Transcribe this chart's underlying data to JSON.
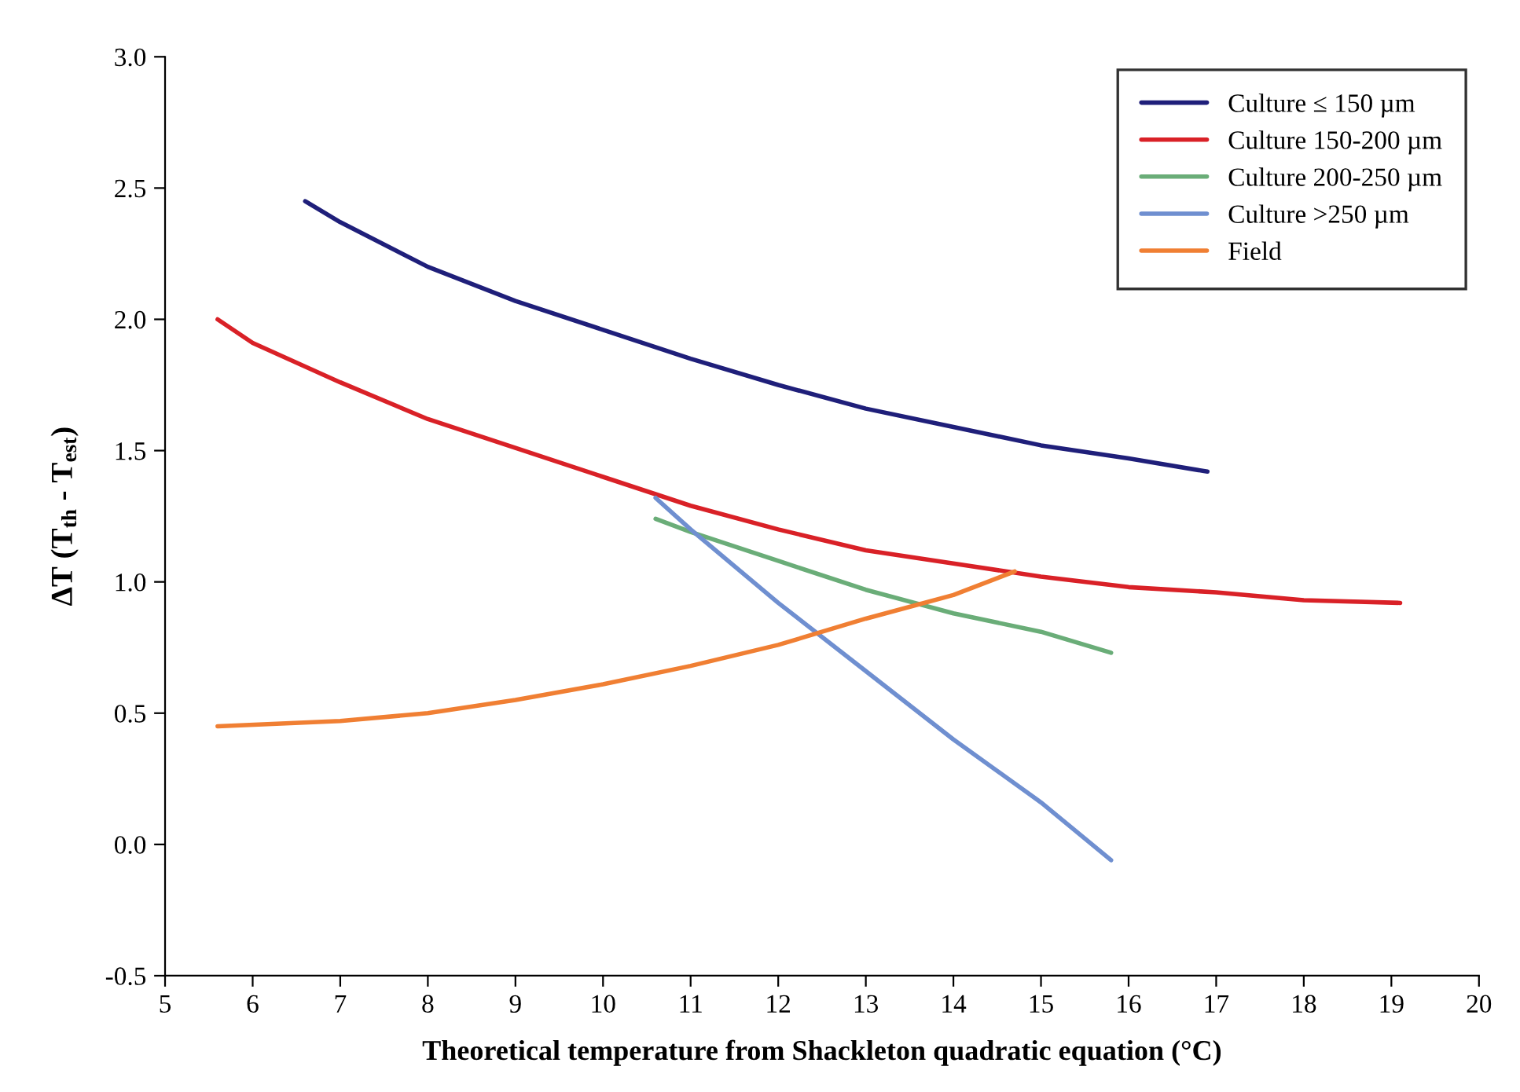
{
  "chart_data": {
    "type": "line",
    "xlabel": "Theoretical temperature from Shackleton quadratic equation (°C)",
    "ylabel": "ΔT (T$_{th}$ - T$_{est}$)",
    "xlim": [
      5,
      20
    ],
    "xticks": [
      5,
      6,
      7,
      8,
      9,
      10,
      11,
      12,
      13,
      14,
      15,
      16,
      17,
      18,
      19,
      20
    ],
    "ylim": [
      -0.5,
      3.0
    ],
    "yticks": [
      {
        "value": -0.5,
        "label": "-0.5"
      },
      {
        "value": 0,
        "label": "0.0"
      },
      {
        "value": 0.5,
        "label": "0.5"
      },
      {
        "value": 1,
        "label": "1.0"
      },
      {
        "value": 1.5,
        "label": "1.5"
      },
      {
        "value": 2,
        "label": "2.0"
      },
      {
        "value": 2.5,
        "label": "2.5"
      },
      {
        "value": 3,
        "label": "3.0"
      }
    ],
    "grid": false,
    "legend": "top right",
    "marker": "none",
    "line_style": "solid",
    "series": [
      {
        "name": "Culture ≤ 150 µm",
        "color": "#1f1f7a",
        "x": [
          6.6,
          7,
          8,
          9,
          10,
          11,
          12,
          13,
          14,
          15,
          16,
          16.9
        ],
        "values": [
          2.45,
          2.37,
          2.2,
          2.07,
          1.96,
          1.85,
          1.75,
          1.66,
          1.59,
          1.52,
          1.47,
          1.42
        ]
      },
      {
        "name": "Culture 150-200 µm",
        "color": "#d92127",
        "x": [
          5.6,
          6,
          7,
          8,
          9,
          10,
          11,
          12,
          13,
          14,
          15,
          16,
          17,
          18,
          19.1
        ],
        "values": [
          2.0,
          1.91,
          1.76,
          1.62,
          1.51,
          1.4,
          1.29,
          1.2,
          1.12,
          1.07,
          1.02,
          0.98,
          0.96,
          0.93,
          0.92
        ]
      },
      {
        "name": "Culture 200-250 µm",
        "color": "#6aad78",
        "x": [
          10.6,
          11,
          12,
          13,
          14,
          15,
          15.8
        ],
        "values": [
          1.24,
          1.19,
          1.08,
          0.97,
          0.88,
          0.81,
          0.73
        ]
      },
      {
        "name": "Culture >250 µm",
        "color": "#6f8fd0",
        "x": [
          10.6,
          11,
          12,
          13,
          14,
          15,
          15.8
        ],
        "values": [
          1.32,
          1.2,
          0.92,
          0.66,
          0.4,
          0.16,
          -0.06
        ]
      },
      {
        "name": "Field",
        "color": "#f07f33",
        "x": [
          5.6,
          7,
          8,
          9,
          10,
          11,
          12,
          13,
          14,
          14.7
        ],
        "values": [
          0.45,
          0.47,
          0.5,
          0.55,
          0.61,
          0.68,
          0.76,
          0.86,
          0.95,
          1.04
        ]
      }
    ]
  }
}
